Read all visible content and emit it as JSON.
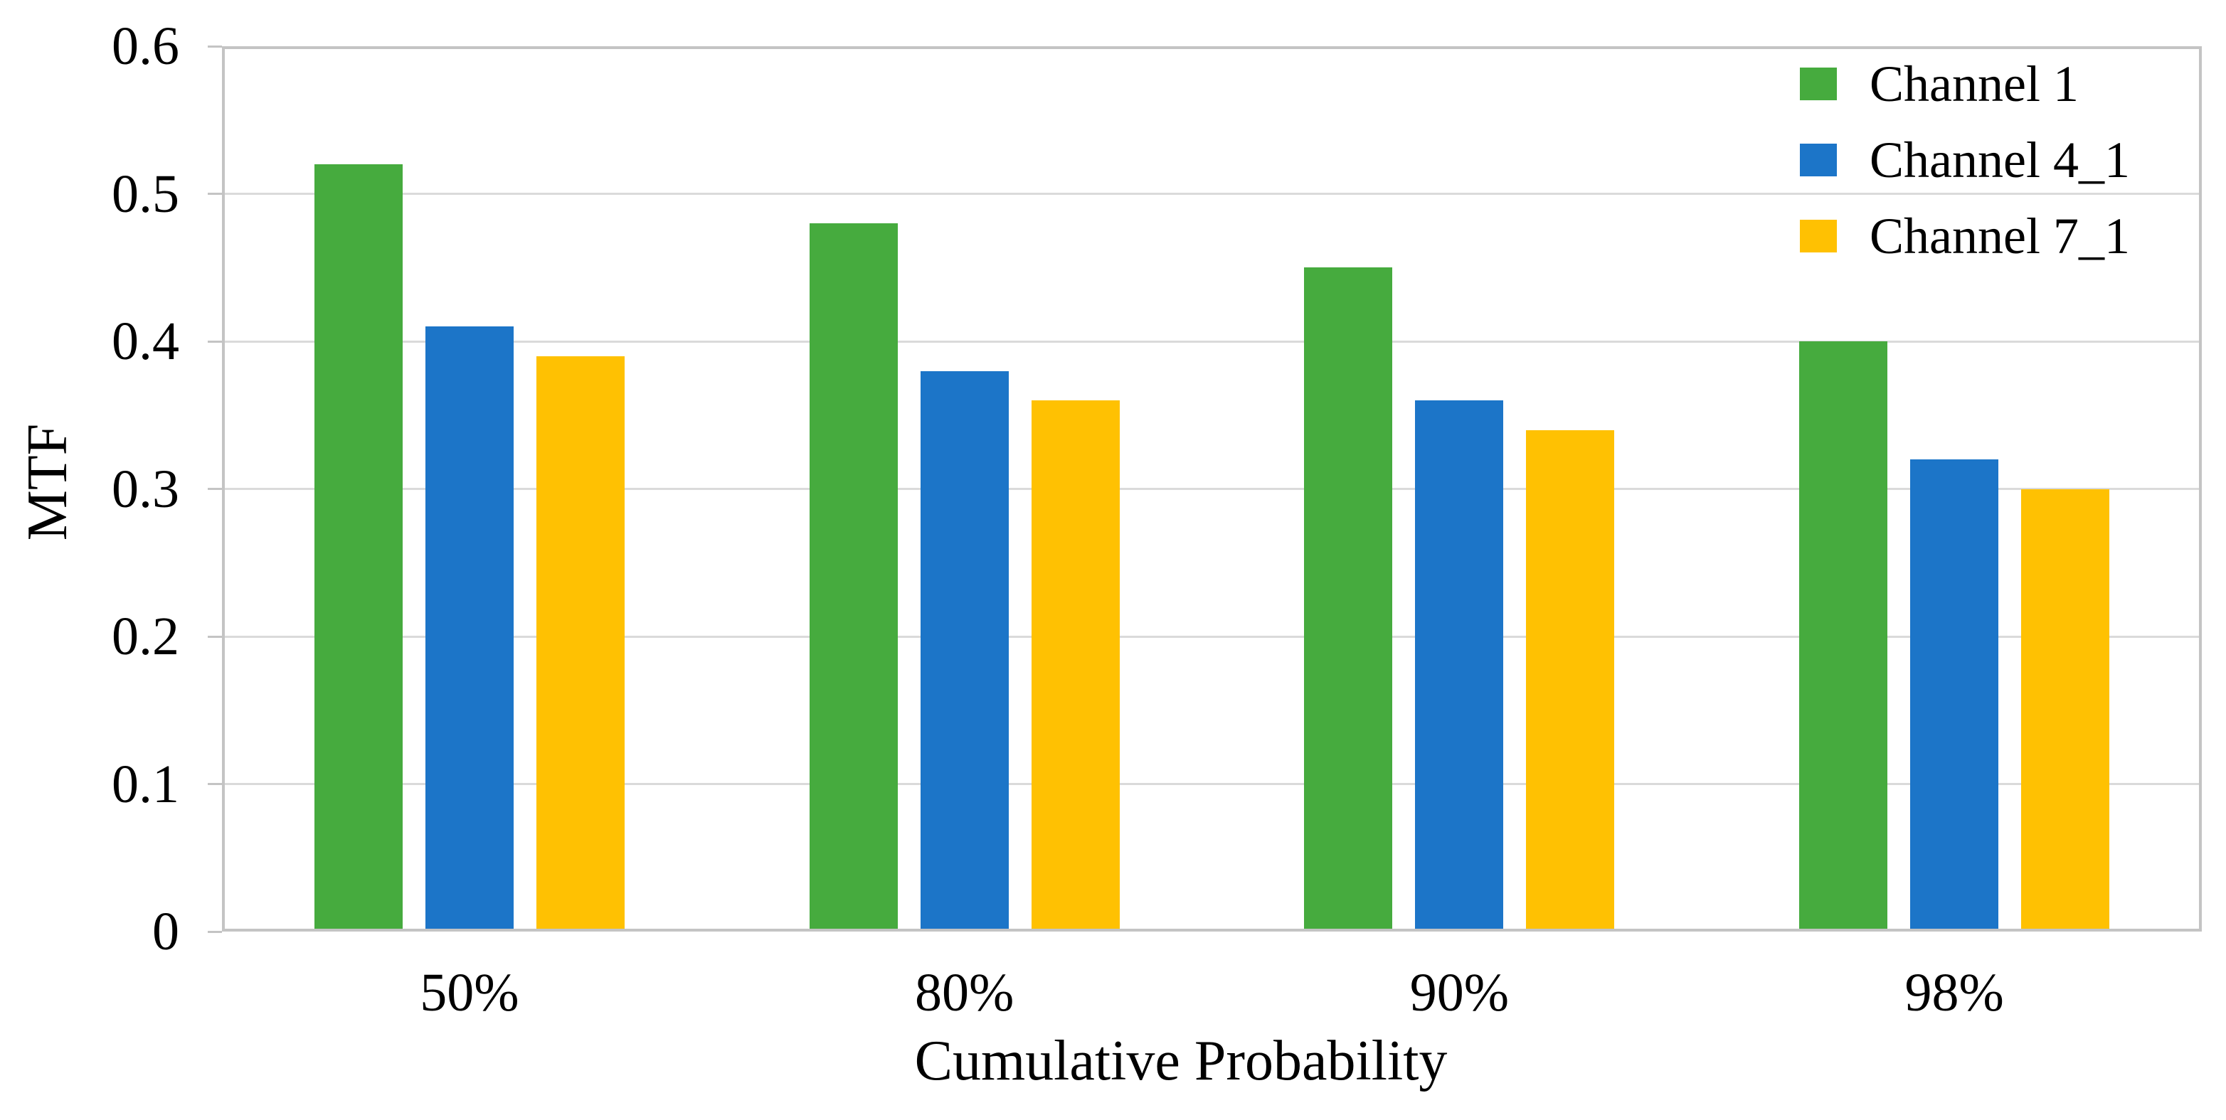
{
  "chart_data": {
    "type": "bar",
    "categories": [
      "50%",
      "80%",
      "90%",
      "98%"
    ],
    "series": [
      {
        "name": "Channel 1",
        "color": "#46AB3E",
        "values": [
          0.52,
          0.48,
          0.45,
          0.4
        ]
      },
      {
        "name": "Channel 4_1",
        "color": "#1C75C8",
        "values": [
          0.41,
          0.38,
          0.36,
          0.32
        ]
      },
      {
        "name": "Channel 7_1",
        "color": "#FFC102",
        "values": [
          0.39,
          0.36,
          0.34,
          0.3
        ]
      }
    ],
    "xlabel": "Cumulative Probability",
    "ylabel": "MTF",
    "ylim": [
      0,
      0.6
    ],
    "yticks": [
      "0",
      "0.1",
      "0.2",
      "0.3",
      "0.4",
      "0.5",
      "0.6"
    ],
    "grid": true,
    "legend_position": "top-right",
    "colors": {
      "axis": "#C4C4C4",
      "gridline": "#DADADA",
      "text": "#000000",
      "background": "#FFFFFF"
    }
  }
}
